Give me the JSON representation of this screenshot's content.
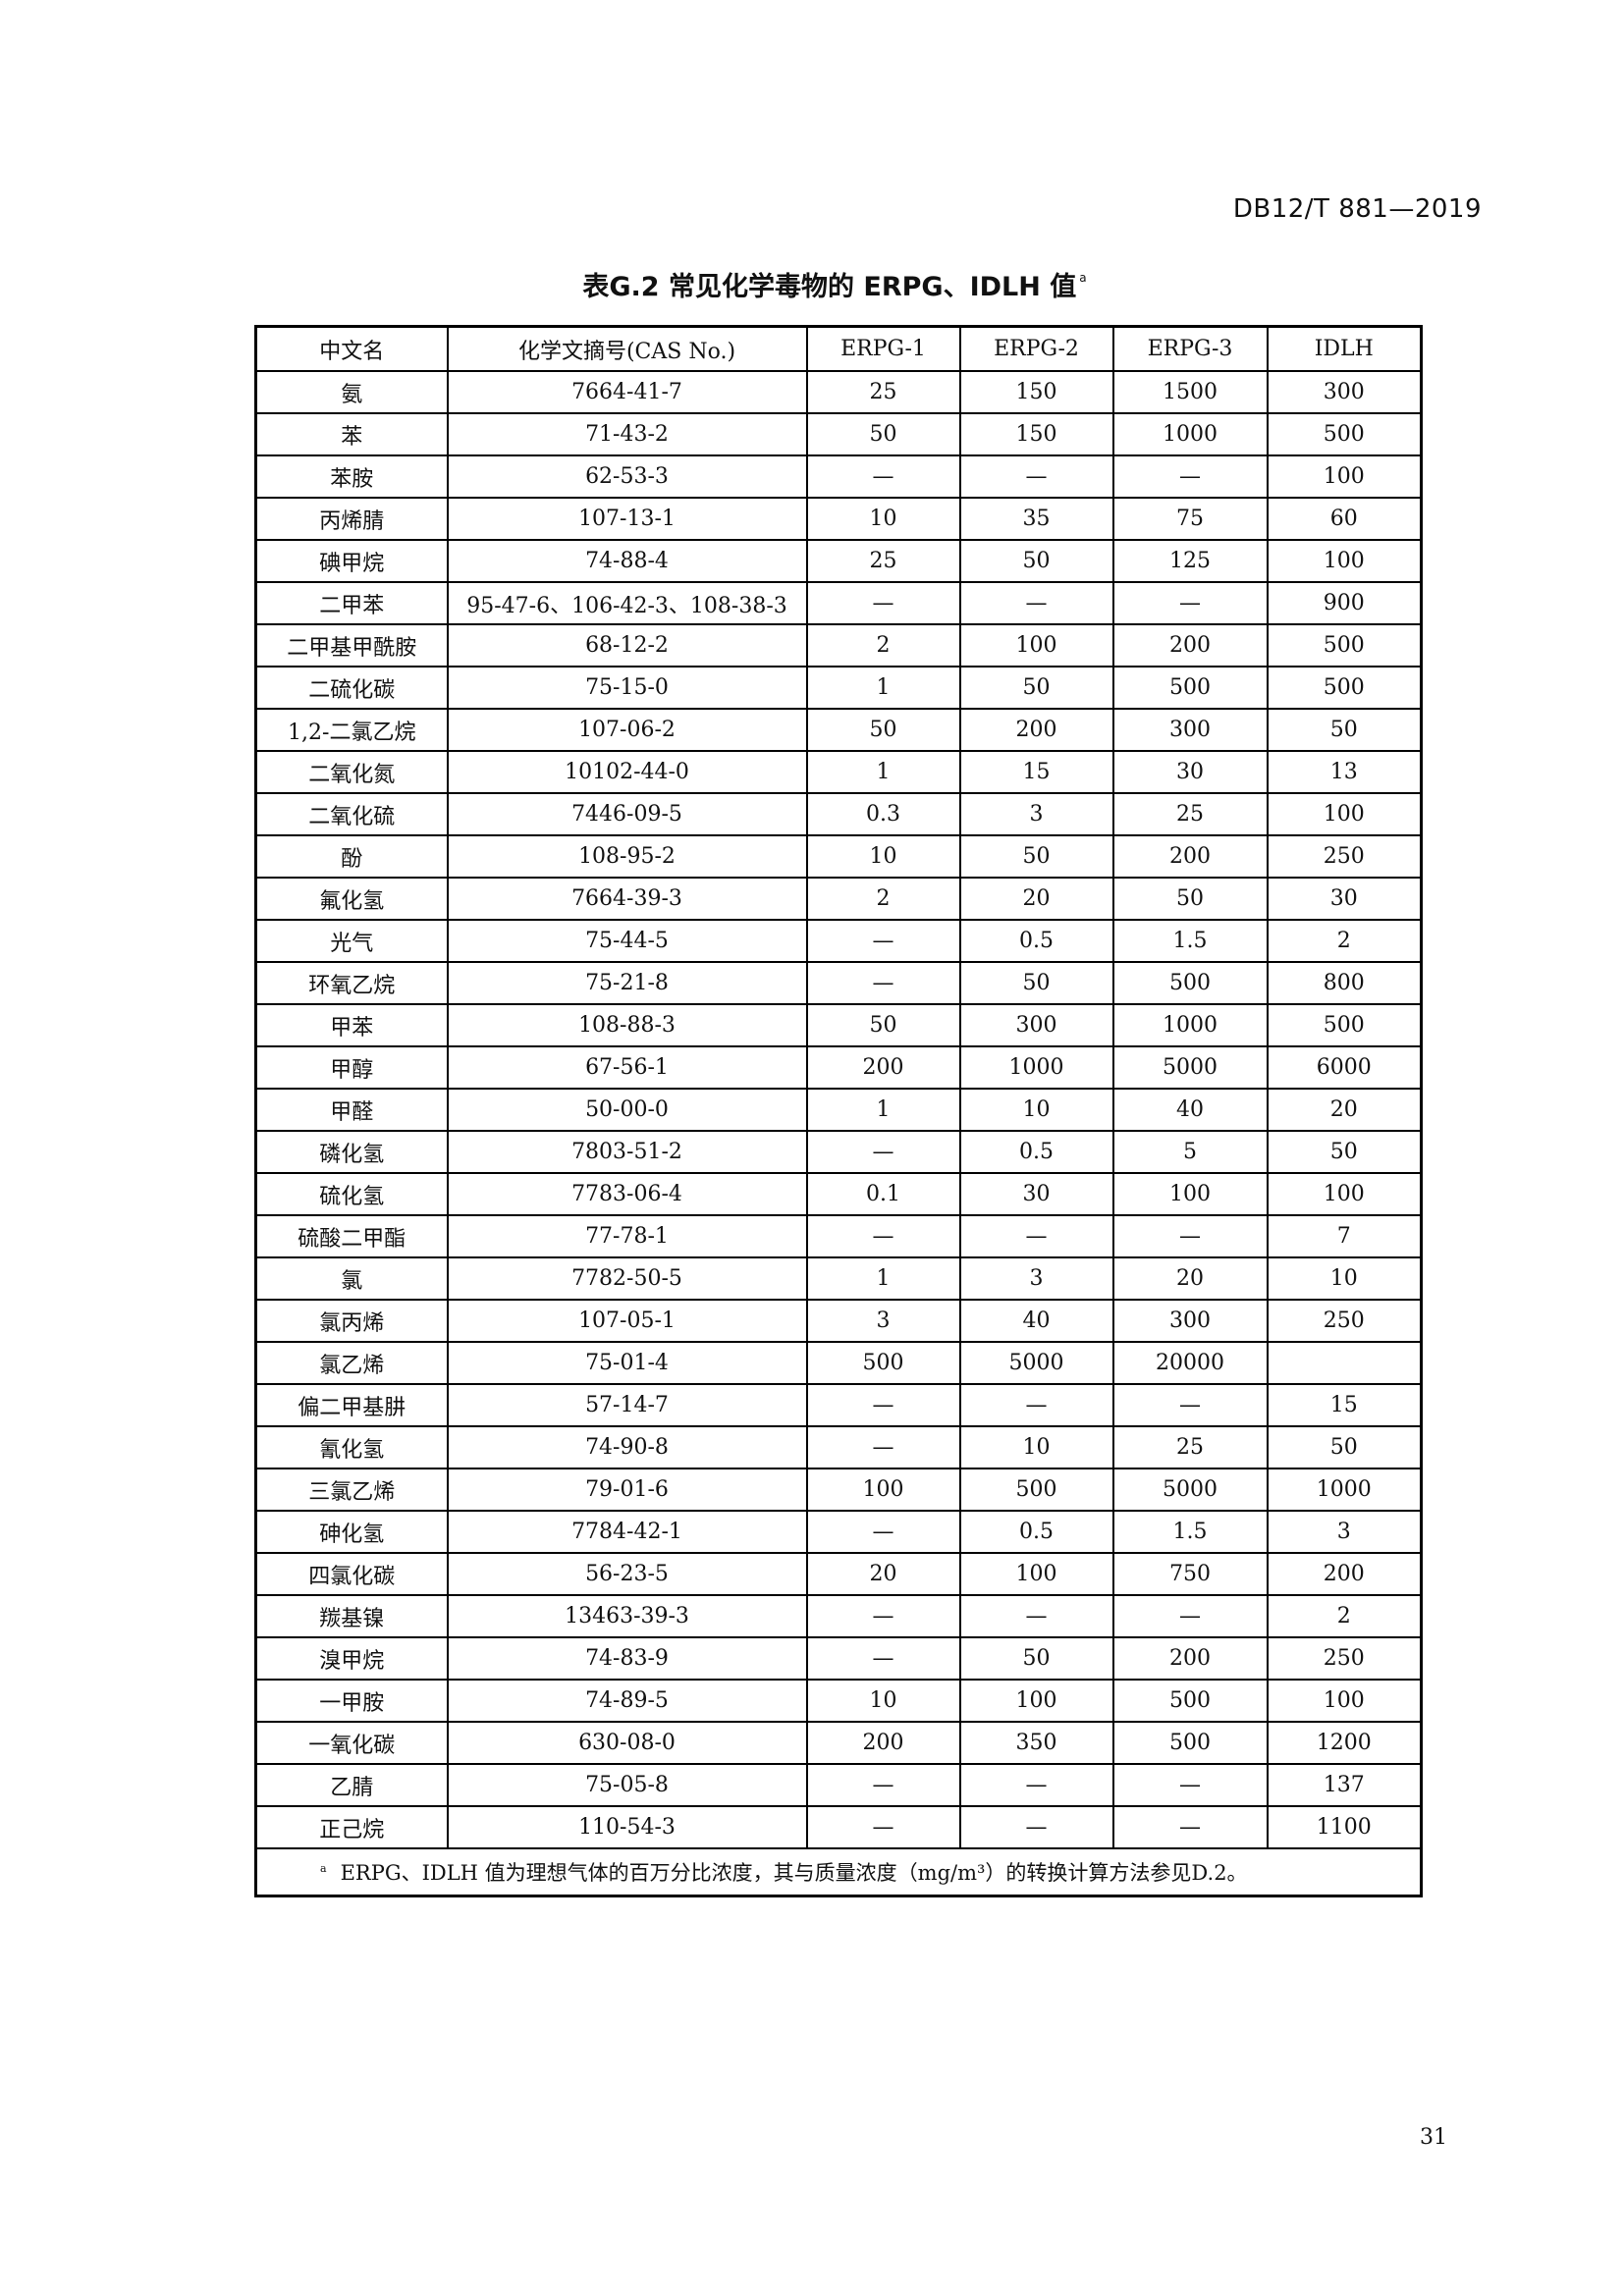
{
  "header": {
    "doc_code": "DB12/T 881—2019"
  },
  "title": {
    "text": "表G.2  常见化学毒物的 ERPG、IDLH 值",
    "footnote_mark": "a"
  },
  "table": {
    "columns": [
      "中文名",
      "化学文摘号(CAS No.)",
      "ERPG-1",
      "ERPG-2",
      "ERPG-3",
      "IDLH"
    ],
    "rows": [
      [
        "氨",
        "7664-41-7",
        "25",
        "150",
        "1500",
        "300"
      ],
      [
        "苯",
        "71-43-2",
        "50",
        "150",
        "1000",
        "500"
      ],
      [
        "苯胺",
        "62-53-3",
        "—",
        "—",
        "—",
        "100"
      ],
      [
        "丙烯腈",
        "107-13-1",
        "10",
        "35",
        "75",
        "60"
      ],
      [
        "碘甲烷",
        "74-88-4",
        "25",
        "50",
        "125",
        "100"
      ],
      [
        "二甲苯",
        "95-47-6、106-42-3、108-38-3",
        "—",
        "—",
        "—",
        "900"
      ],
      [
        "二甲基甲酰胺",
        "68-12-2",
        "2",
        "100",
        "200",
        "500"
      ],
      [
        "二硫化碳",
        "75-15-0",
        "1",
        "50",
        "500",
        "500"
      ],
      [
        "1,2-二氯乙烷",
        "107-06-2",
        "50",
        "200",
        "300",
        "50"
      ],
      [
        "二氧化氮",
        "10102-44-0",
        "1",
        "15",
        "30",
        "13"
      ],
      [
        "二氧化硫",
        "7446-09-5",
        "0.3",
        "3",
        "25",
        "100"
      ],
      [
        "酚",
        "108-95-2",
        "10",
        "50",
        "200",
        "250"
      ],
      [
        "氟化氢",
        "7664-39-3",
        "2",
        "20",
        "50",
        "30"
      ],
      [
        "光气",
        "75-44-5",
        "—",
        "0.5",
        "1.5",
        "2"
      ],
      [
        "环氧乙烷",
        "75-21-8",
        "—",
        "50",
        "500",
        "800"
      ],
      [
        "甲苯",
        "108-88-3",
        "50",
        "300",
        "1000",
        "500"
      ],
      [
        "甲醇",
        "67-56-1",
        "200",
        "1000",
        "5000",
        "6000"
      ],
      [
        "甲醛",
        "50-00-0",
        "1",
        "10",
        "40",
        "20"
      ],
      [
        "磷化氢",
        "7803-51-2",
        "—",
        "0.5",
        "5",
        "50"
      ],
      [
        "硫化氢",
        "7783-06-4",
        "0.1",
        "30",
        "100",
        "100"
      ],
      [
        "硫酸二甲酯",
        "77-78-1",
        "—",
        "—",
        "—",
        "7"
      ],
      [
        "氯",
        "7782-50-5",
        "1",
        "3",
        "20",
        "10"
      ],
      [
        "氯丙烯",
        "107-05-1",
        "3",
        "40",
        "300",
        "250"
      ],
      [
        "氯乙烯",
        "75-01-4",
        "500",
        "5000",
        "20000",
        ""
      ],
      [
        "偏二甲基肼",
        "57-14-7",
        "—",
        "—",
        "—",
        "15"
      ],
      [
        "氰化氢",
        "74-90-8",
        "—",
        "10",
        "25",
        "50"
      ],
      [
        "三氯乙烯",
        "79-01-6",
        "100",
        "500",
        "5000",
        "1000"
      ],
      [
        "砷化氢",
        "7784-42-1",
        "—",
        "0.5",
        "1.5",
        "3"
      ],
      [
        "四氯化碳",
        "56-23-5",
        "20",
        "100",
        "750",
        "200"
      ],
      [
        "羰基镍",
        "13463-39-3",
        "—",
        "—",
        "—",
        "2"
      ],
      [
        "溴甲烷",
        "74-83-9",
        "—",
        "50",
        "200",
        "250"
      ],
      [
        "一甲胺",
        "74-89-5",
        "10",
        "100",
        "500",
        "100"
      ],
      [
        "一氧化碳",
        "630-08-0",
        "200",
        "350",
        "500",
        "1200"
      ],
      [
        "乙腈",
        "75-05-8",
        "—",
        "—",
        "—",
        "137"
      ],
      [
        "正己烷",
        "110-54-3",
        "—",
        "—",
        "—",
        "1100"
      ]
    ],
    "footnote": {
      "mark": "a",
      "text": "ERPG、IDLH 值为理想气体的百万分比浓度，其与质量浓度（mg/m³）的转换计算方法参见D.2。"
    }
  },
  "page_number": "31"
}
